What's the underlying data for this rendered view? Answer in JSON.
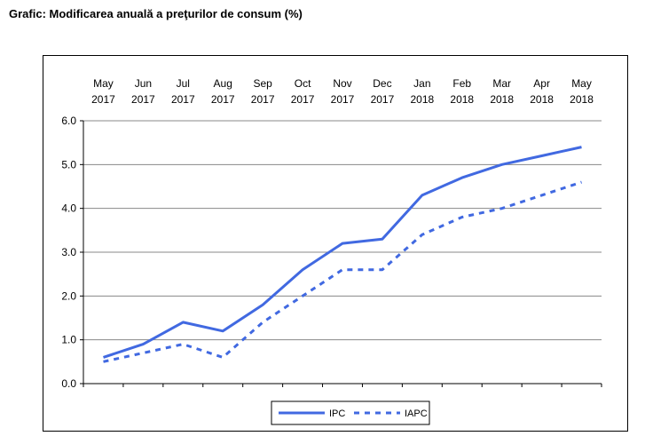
{
  "caption": "Grafic: Modificarea anuală a preţurilor de consum (%)",
  "chart_data": {
    "type": "line",
    "title": "",
    "xlabel": "",
    "ylabel": "",
    "categories": [
      [
        "May",
        "2017"
      ],
      [
        "Jun",
        "2017"
      ],
      [
        "Jul",
        "2017"
      ],
      [
        "Aug",
        "2017"
      ],
      [
        "Sep",
        "2017"
      ],
      [
        "Oct",
        "2017"
      ],
      [
        "Nov",
        "2017"
      ],
      [
        "Dec",
        "2017"
      ],
      [
        "Jan",
        "2018"
      ],
      [
        "Feb",
        "2018"
      ],
      [
        "Mar",
        "2018"
      ],
      [
        "Apr",
        "2018"
      ],
      [
        "May",
        "2018"
      ]
    ],
    "x_axis_position": "top",
    "ylim": [
      0,
      6
    ],
    "yticks": [
      "0.0",
      "1.0",
      "2.0",
      "3.0",
      "4.0",
      "5.0",
      "6.0"
    ],
    "grid": true,
    "legend_position": "bottom-center",
    "series": [
      {
        "name": "IPC",
        "style": "solid",
        "color": "#4169e1",
        "values": [
          0.6,
          0.9,
          1.4,
          1.2,
          1.8,
          2.6,
          3.2,
          3.3,
          4.3,
          4.7,
          5.0,
          5.2,
          5.4
        ]
      },
      {
        "name": "IAPC",
        "style": "dashed",
        "color": "#4169e1",
        "values": [
          0.5,
          0.7,
          0.9,
          0.6,
          1.4,
          2.0,
          2.6,
          2.6,
          3.4,
          3.8,
          4.0,
          4.3,
          4.6
        ]
      }
    ]
  }
}
